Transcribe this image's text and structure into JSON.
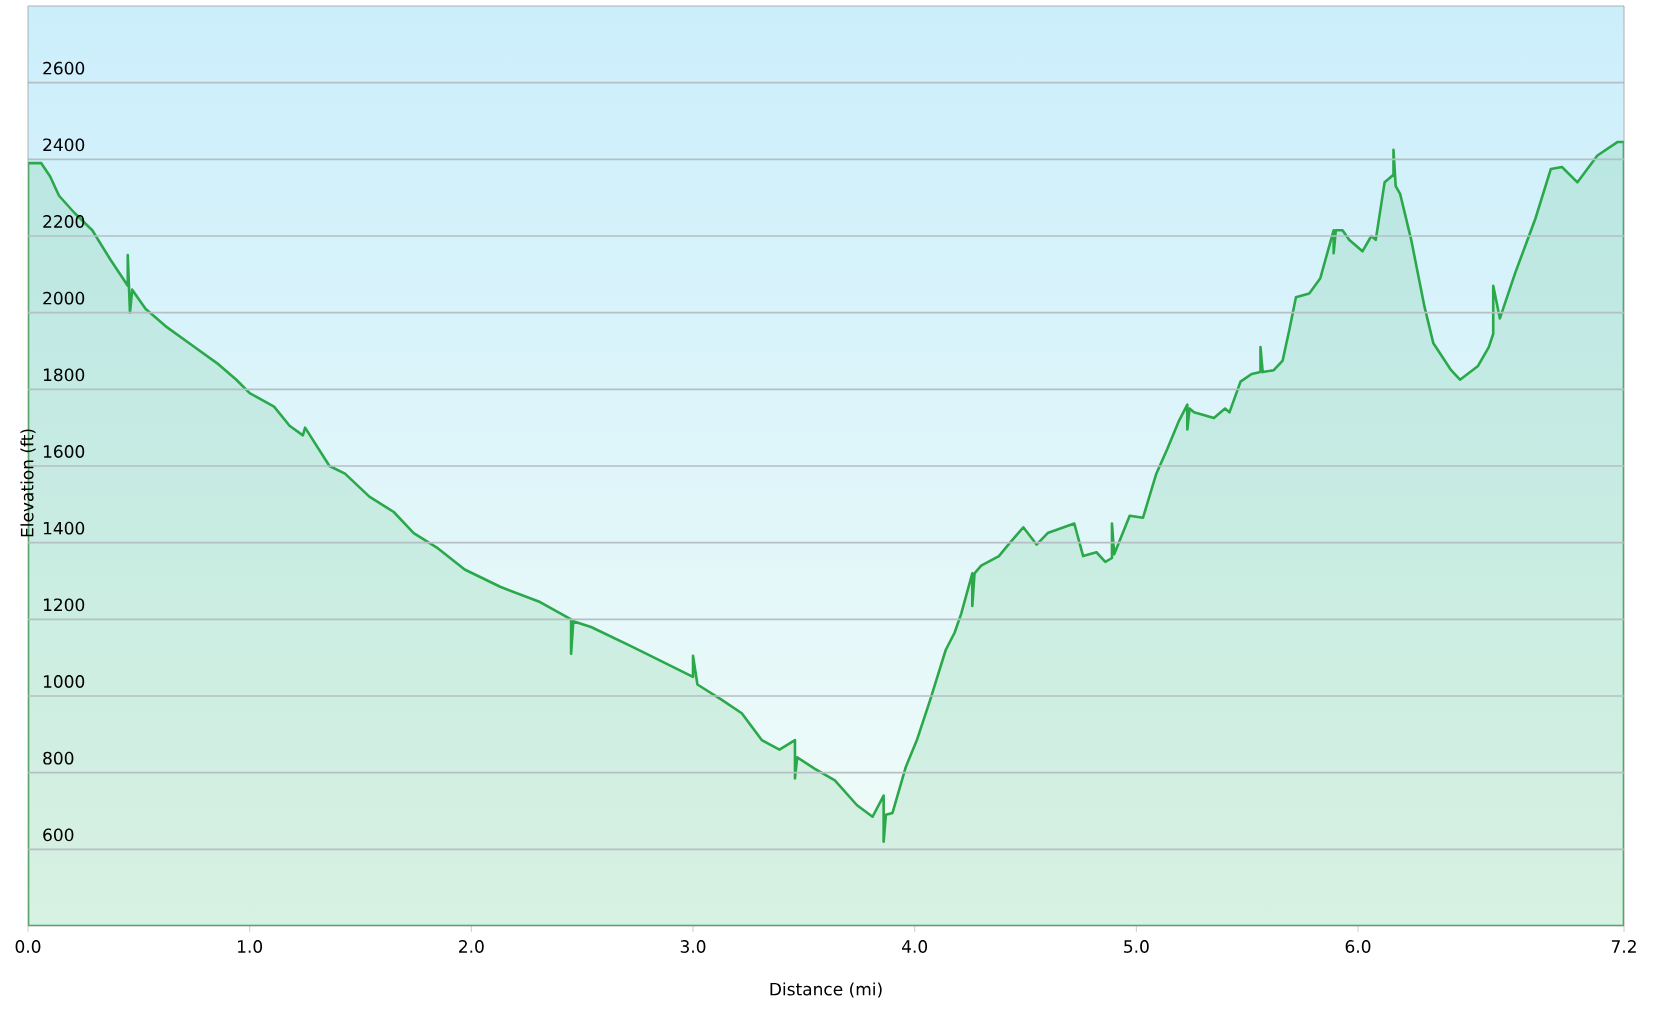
{
  "chart_data": {
    "type": "area",
    "xlabel": "Distance  (mi)",
    "ylabel": "Elevation (ft)",
    "color": "#2aa84a",
    "grid": "y",
    "xlim": [
      0,
      7.2
    ],
    "ylim": [
      400,
      2800
    ],
    "xticks": [
      {
        "value": 0,
        "label": "0.0"
      },
      {
        "value": 1,
        "label": "1.0"
      },
      {
        "value": 2,
        "label": "2.0"
      },
      {
        "value": 3,
        "label": "3.0"
      },
      {
        "value": 4,
        "label": "4.0"
      },
      {
        "value": 5,
        "label": "5.0"
      },
      {
        "value": 6,
        "label": "6.0"
      },
      {
        "value": 7.2,
        "label": "7.2"
      }
    ],
    "yticks": [
      600,
      800,
      1000,
      1200,
      1400,
      1600,
      1800,
      2000,
      2200,
      2400,
      2600
    ],
    "x": [
      0,
      0.06,
      0.1,
      0.14,
      0.21,
      0.29,
      0.37,
      0.45,
      0.45,
      0.46,
      0.47,
      0.53,
      0.62,
      0.74,
      0.86,
      0.94,
      1.0,
      1.11,
      1.18,
      1.24,
      1.25,
      1.36,
      1.43,
      1.54,
      1.65,
      1.74,
      1.85,
      1.97,
      2.13,
      2.31,
      2.45,
      2.45,
      2.46,
      2.54,
      2.72,
      3.0,
      3.0,
      3.02,
      3.13,
      3.22,
      3.31,
      3.39,
      3.46,
      3.46,
      3.47,
      3.55,
      3.64,
      3.74,
      3.81,
      3.86,
      3.86,
      3.87,
      3.9,
      3.96,
      4.01,
      4.07,
      4.14,
      4.18,
      4.21,
      4.26,
      4.26,
      4.27,
      4.3,
      4.38,
      4.43,
      4.49,
      4.55,
      4.6,
      4.72,
      4.76,
      4.82,
      4.86,
      4.89,
      4.89,
      4.9,
      4.97,
      5.03,
      5.09,
      5.14,
      5.19,
      5.23,
      5.23,
      5.24,
      5.26,
      5.35,
      5.4,
      5.42,
      5.47,
      5.52,
      5.56,
      5.56,
      5.57,
      5.62,
      5.66,
      5.69,
      5.72,
      5.78,
      5.83,
      5.89,
      5.89,
      5.9,
      5.93,
      5.96,
      6.02,
      6.06,
      6.08,
      6.12,
      6.16,
      6.16,
      6.17,
      6.19,
      6.24,
      6.3,
      6.34,
      6.42,
      6.46,
      6.54,
      6.59,
      6.61,
      6.61,
      6.64,
      6.71,
      6.8,
      6.87,
      6.92,
      6.99,
      7.08,
      7.17,
      7.2
    ],
    "values": [
      2390,
      2390,
      2355,
      2305,
      2260,
      2215,
      2140,
      2070,
      2150,
      2000,
      2060,
      2010,
      1965,
      1915,
      1865,
      1825,
      1790,
      1755,
      1705,
      1680,
      1700,
      1600,
      1580,
      1520,
      1480,
      1425,
      1385,
      1330,
      1285,
      1245,
      1200,
      1110,
      1195,
      1180,
      1130,
      1050,
      1105,
      1030,
      990,
      955,
      885,
      860,
      885,
      785,
      840,
      810,
      780,
      715,
      685,
      740,
      620,
      690,
      695,
      815,
      885,
      990,
      1120,
      1165,
      1215,
      1320,
      1235,
      1320,
      1340,
      1365,
      1400,
      1440,
      1395,
      1425,
      1450,
      1365,
      1375,
      1350,
      1360,
      1450,
      1370,
      1470,
      1465,
      1580,
      1645,
      1715,
      1760,
      1695,
      1750,
      1740,
      1725,
      1750,
      1740,
      1820,
      1840,
      1845,
      1910,
      1845,
      1850,
      1875,
      1955,
      2040,
      2050,
      2090,
      2215,
      2155,
      2215,
      2215,
      2190,
      2160,
      2200,
      2190,
      2340,
      2360,
      2425,
      2330,
      2310,
      2190,
      2015,
      1920,
      1850,
      1825,
      1860,
      1910,
      1945,
      2070,
      1985,
      2105,
      2245,
      2375,
      2380,
      2340,
      2410,
      2445,
      2445
    ]
  }
}
